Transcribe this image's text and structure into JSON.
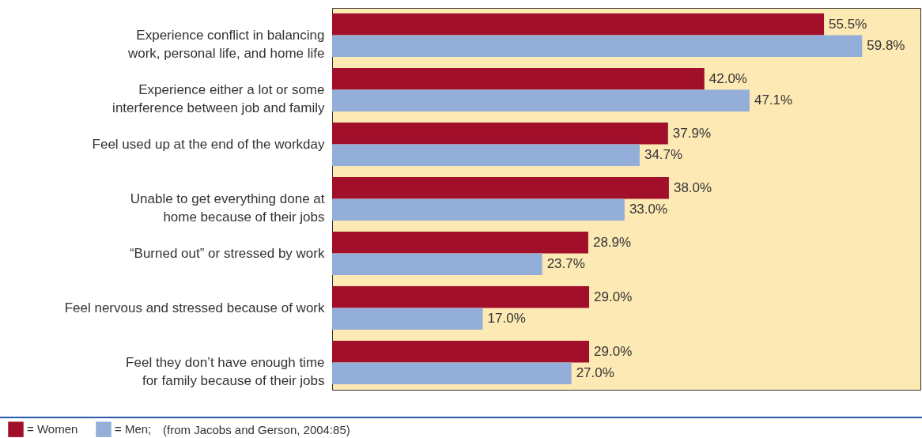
{
  "chart_data": {
    "type": "bar",
    "orientation": "horizontal",
    "legend": "bottom left",
    "categories": [
      "Experience conflict in balancing\nwork, personal life, and home life",
      "Experience either a lot or some\ninterference between job and family",
      "Feel used up at the end of the workday",
      "Unable to get everything done at\nhome because of their jobs",
      "“Burned out” or stressed by work",
      "Feel nervous and stressed because of work",
      "Feel they don’t have enough time\nfor family because of their jobs"
    ],
    "series": [
      {
        "name": "= Women",
        "color": "#a10f2b",
        "values": [
          55.5,
          42.0,
          37.9,
          38.0,
          28.9,
          29.0,
          29.0
        ],
        "value_labels": [
          "55.5%",
          "42.0%",
          "37.9%",
          "38.0%",
          "28.9%",
          "29.0%",
          "29.0%"
        ]
      },
      {
        "name": "= Men;",
        "color": "#93aed8",
        "values": [
          59.8,
          47.1,
          34.7,
          33.0,
          23.7,
          17.0,
          27.0
        ],
        "value_labels": [
          "59.8%",
          "47.1%",
          "34.7%",
          "33.0%",
          "23.7%",
          "17.0%",
          "27.0%"
        ]
      }
    ],
    "annotations": [
      "(from Jacobs and Gerson, 2004:85)"
    ]
  }
}
